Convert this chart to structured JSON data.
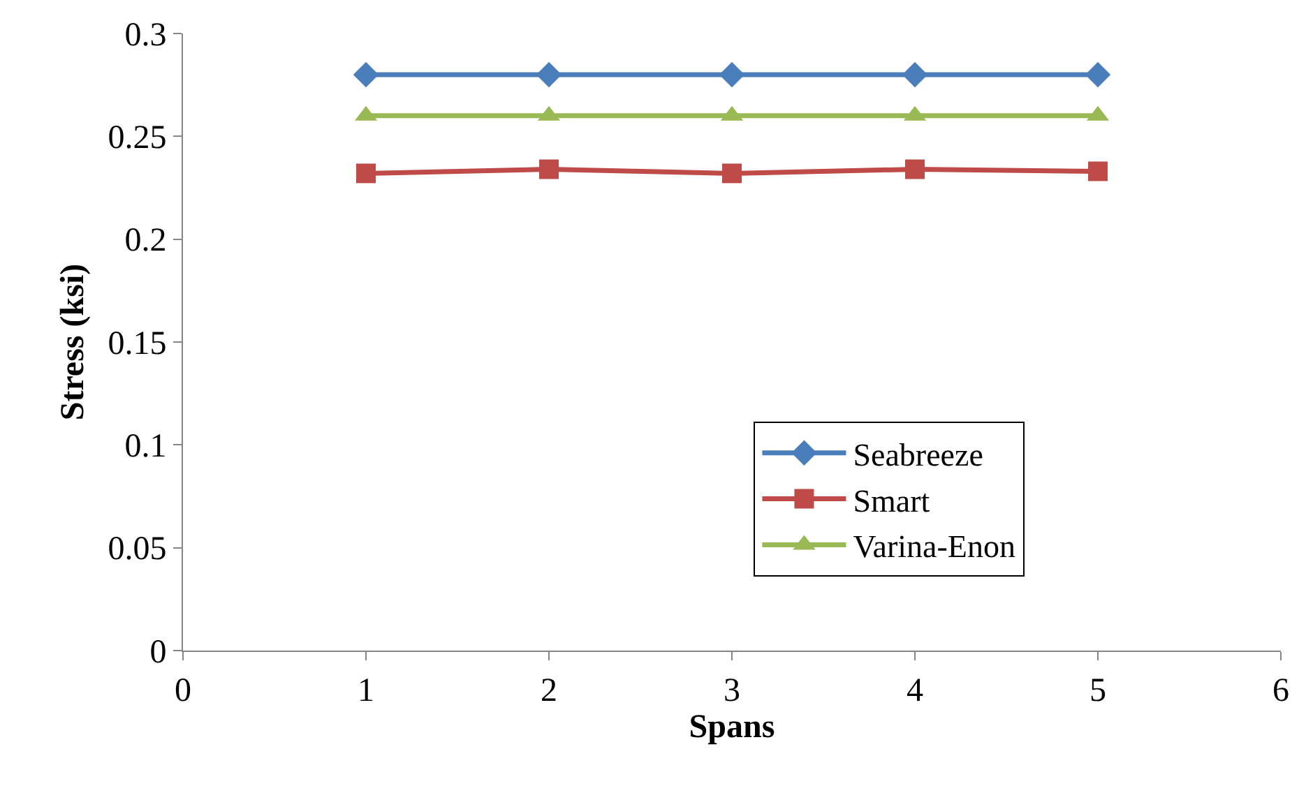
{
  "chart_data": {
    "type": "line",
    "xlabel": "Spans",
    "ylabel": "Stress (ksi)",
    "x": [
      1,
      2,
      3,
      4,
      5
    ],
    "series": [
      {
        "name": "Seabreeze",
        "color": "#4a7ebb",
        "marker": "diamond",
        "values": [
          0.28,
          0.28,
          0.28,
          0.28,
          0.28
        ]
      },
      {
        "name": "Smart",
        "color": "#be4b48",
        "marker": "square",
        "values": [
          0.232,
          0.234,
          0.232,
          0.234,
          0.233
        ]
      },
      {
        "name": "Varina-Enon",
        "color": "#98b954",
        "marker": "triangle",
        "values": [
          0.26,
          0.26,
          0.26,
          0.26,
          0.26
        ]
      }
    ],
    "xlim": [
      0,
      6
    ],
    "xticks": [
      0,
      1,
      2,
      3,
      4,
      5,
      6
    ],
    "ylim": [
      0,
      0.3
    ],
    "yticks": [
      0,
      0.05,
      0.1,
      0.15,
      0.2,
      0.25,
      0.3
    ],
    "legend": "bottom right",
    "line_style": "solid"
  }
}
